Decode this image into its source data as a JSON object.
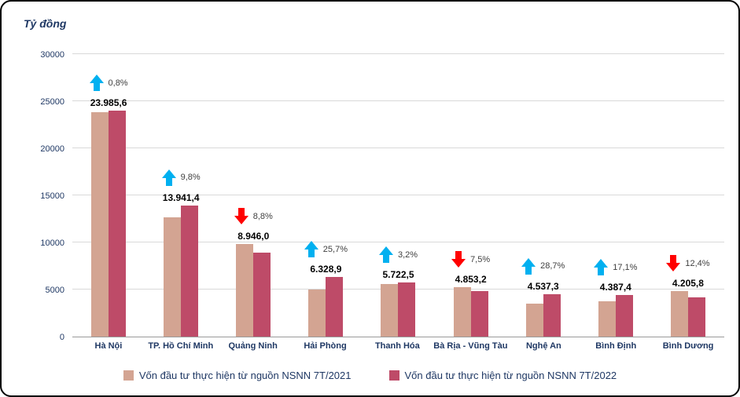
{
  "chart_data": {
    "type": "bar",
    "unit_label": "Tỷ đồng",
    "ylim": [
      0,
      30000
    ],
    "yticks": [
      0,
      5000,
      10000,
      15000,
      20000,
      25000,
      30000
    ],
    "categories": [
      "Hà Nội",
      "TP. Hồ Chí Minh",
      "Quảng Ninh",
      "Hải Phòng",
      "Thanh Hóa",
      "Bà Rịa - Vũng Tàu",
      "Nghệ An",
      "Bình Định",
      "Bình Dương"
    ],
    "series": [
      {
        "name": "Vốn đầu tư thực hiện từ nguồn NSNN 7T/2021",
        "color": "#d3a492",
        "values": [
          23800,
          12700,
          9810,
          5030,
          5545,
          5245,
          3525,
          3745,
          4800
        ]
      },
      {
        "name": "Vốn đầu tư thực hiện từ nguồn NSNN 7T/2022",
        "color": "#be4b68",
        "values": [
          23985.6,
          13941.4,
          8946.0,
          6328.9,
          5722.5,
          4853.2,
          4537.3,
          4387.4,
          4205.8
        ]
      }
    ],
    "value_labels": [
      "23.985,6",
      "13.941,4",
      "8.946,0",
      "6.328,9",
      "5.722,5",
      "4.853,2",
      "4.537,3",
      "4.387,4",
      "4.205,8"
    ],
    "changes": [
      {
        "pct": "0,8%",
        "dir": "up"
      },
      {
        "pct": "9,8%",
        "dir": "up"
      },
      {
        "pct": "8,8%",
        "dir": "down"
      },
      {
        "pct": "25,7%",
        "dir": "up"
      },
      {
        "pct": "3,2%",
        "dir": "up"
      },
      {
        "pct": "7,5%",
        "dir": "down"
      },
      {
        "pct": "28,7%",
        "dir": "up"
      },
      {
        "pct": "17,1%",
        "dir": "up"
      },
      {
        "pct": "12,4%",
        "dir": "down"
      }
    ],
    "colors": {
      "up": "#00b0f0",
      "down": "#ff0000"
    },
    "legend_position": "bottom",
    "grid": true
  }
}
